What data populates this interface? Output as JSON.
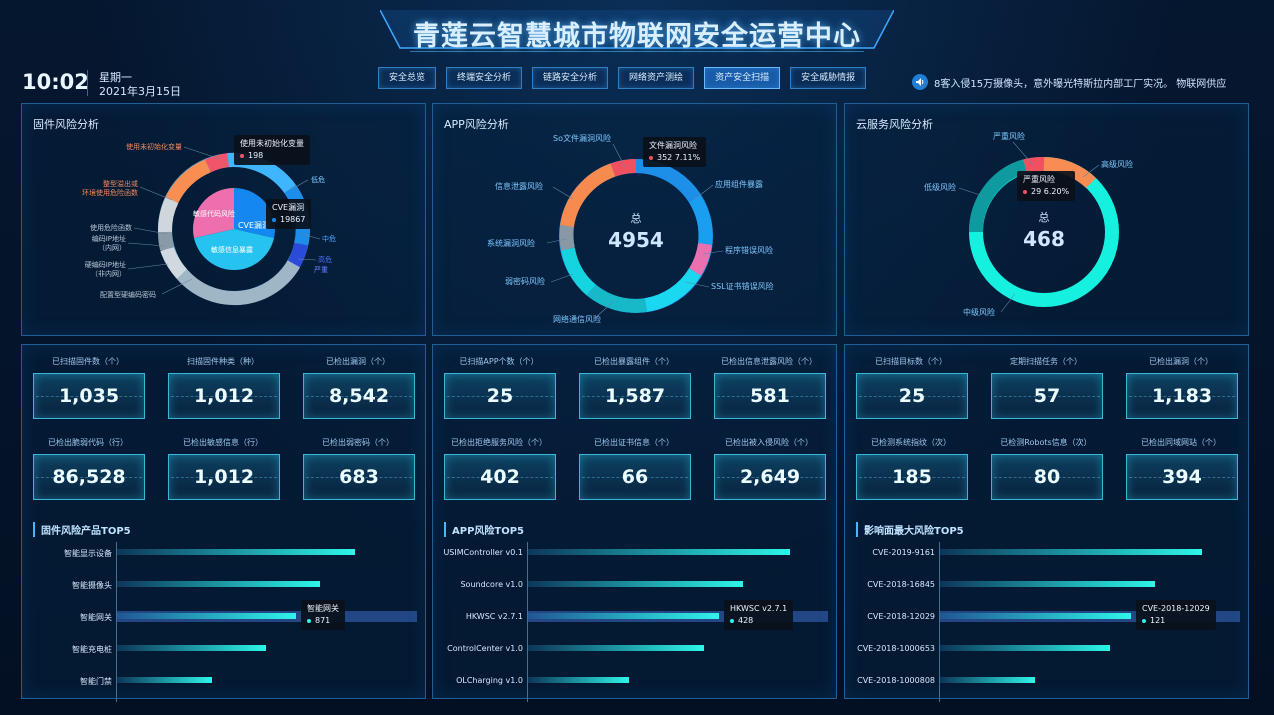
{
  "header": {
    "title": "青莲云智慧城市物联网安全运营中心"
  },
  "clock": {
    "time": "10:02",
    "weekday": "星期一",
    "date": "2021年3月15日"
  },
  "nav": {
    "tabs": [
      "安全总览",
      "终端安全分析",
      "链路安全分析",
      "网络资产测绘",
      "资产安全扫描",
      "安全威胁情报"
    ],
    "active": 4
  },
  "notice": {
    "text": "8客入侵15万摄像头，意外曝光特斯拉内部工厂实况。   物联网供应"
  },
  "firmware_risk": {
    "title": "固件风险分析",
    "outer_labels": [
      "使用未初始化变量",
      "整型溢出或\n环境使用危险函数",
      "使用危险函数",
      "编码IP地址\n（内网）",
      "硬编码IP地址\n（非内网）",
      "配置型硬编码密码",
      "低危",
      "中危",
      "高危",
      "严重"
    ],
    "inner_labels": [
      "CVE漏洞",
      "敏感代码风险",
      "敏感信息暴露"
    ],
    "tip1": {
      "label": "使用未初始化变量",
      "value": "198"
    },
    "tip2": {
      "label": "CVE漏洞",
      "value": "19867"
    }
  },
  "app_risk": {
    "title": "APP风险分析",
    "center_label": "总",
    "total": "4954",
    "labels": [
      "So文件漏洞风险",
      "信息泄露风险",
      "系统漏洞风险",
      "弱密码风险",
      "网络通信风险",
      "SSL证书错误风险",
      "程序错误风险",
      "应用组件暴露"
    ],
    "tip": {
      "label": "文件漏洞风险",
      "value": "352  7.11%"
    }
  },
  "cloud_risk": {
    "title": "云服务风险分析",
    "center_label": "总",
    "total": "468",
    "labels": [
      "严重风险",
      "高级风险",
      "低级风险",
      "中级风险"
    ],
    "tip": {
      "label": "严重风险",
      "value": "29  6.20%"
    }
  },
  "firmware_stats": [
    {
      "label": "已扫描固件数（个）",
      "value": "1,035"
    },
    {
      "label": "扫描固件种类（种）",
      "value": "1,012"
    },
    {
      "label": "已检出漏洞（个）",
      "value": "8,542"
    },
    {
      "label": "已检出脆弱代码（行）",
      "value": "86,528"
    },
    {
      "label": "已检出敏感信息（行）",
      "value": "1,012"
    },
    {
      "label": "已检出弱密码（个）",
      "value": "683"
    }
  ],
  "app_stats": [
    {
      "label": "已扫描APP个数（个）",
      "value": "25"
    },
    {
      "label": "已检出暴露组件（个）",
      "value": "1,587"
    },
    {
      "label": "已检出信息泄露风险（个）",
      "value": "581"
    },
    {
      "label": "已检出拒绝服务风险（个）",
      "value": "402"
    },
    {
      "label": "已检出证书信息（个）",
      "value": "66"
    },
    {
      "label": "已检出被入侵风险（个）",
      "value": "2,649"
    }
  ],
  "cloud_stats": [
    {
      "label": "已扫描目标数（个）",
      "value": "25"
    },
    {
      "label": "定期扫描任务（个）",
      "value": "57"
    },
    {
      "label": "已检出漏洞（个）",
      "value": "1,183"
    },
    {
      "label": "已检测系统指纹（次）",
      "value": "185"
    },
    {
      "label": "已检测Robots信息（次）",
      "value": "80"
    },
    {
      "label": "已检出同域网站（个）",
      "value": "394"
    }
  ],
  "top5": [
    {
      "title": "固件风险产品TOP5",
      "items": [
        {
          "label": "智能显示设备",
          "value": 0.8
        },
        {
          "label": "智能摄像头",
          "value": 0.68
        },
        {
          "label": "智能网关",
          "value": 0.6
        },
        {
          "label": "智能充电桩",
          "value": 0.5
        },
        {
          "label": "智能门禁",
          "value": 0.32
        }
      ],
      "tip": {
        "label": "智能网关",
        "value": "871"
      }
    },
    {
      "title": "APP风险TOP5",
      "items": [
        {
          "label": "USIMController v0.1",
          "value": 0.88
        },
        {
          "label": "Soundcore v1.0",
          "value": 0.72
        },
        {
          "label": "HKWSC v2.7.1",
          "value": 0.64
        },
        {
          "label": "ControlCenter v1.0",
          "value": 0.59
        },
        {
          "label": "OLCharging v1.0",
          "value": 0.34
        }
      ],
      "tip": {
        "label": "HKWSC v2.7.1",
        "value": "428"
      }
    },
    {
      "title": "影响面最大风险TOP5",
      "items": [
        {
          "label": "CVE-2019-9161",
          "value": 0.88
        },
        {
          "label": "CVE-2018-16845",
          "value": 0.72
        },
        {
          "label": "CVE-2018-12029",
          "value": 0.64
        },
        {
          "label": "CVE-2018-1000653",
          "value": 0.57
        },
        {
          "label": "CVE-2018-1000808",
          "value": 0.32
        }
      ],
      "tip": {
        "label": "CVE-2018-12029",
        "value": "121"
      }
    }
  ]
}
